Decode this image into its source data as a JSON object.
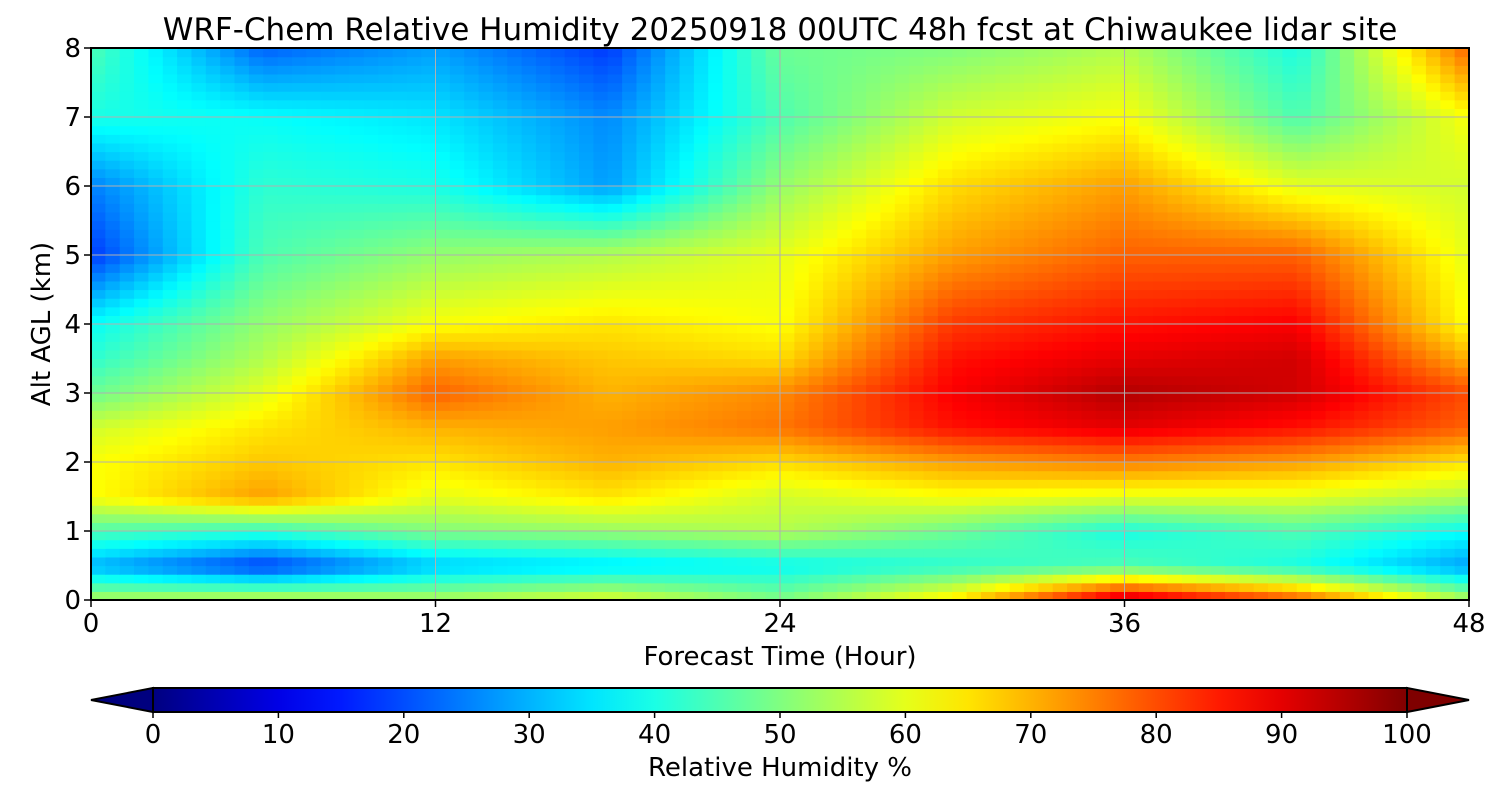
{
  "chart_data": {
    "type": "heatmap",
    "title": "WRF-Chem Relative Humidity 20250918 00UTC 48h fcst at Chiwaukee lidar site",
    "xlabel": "Forecast Time (Hour)",
    "ylabel": "Alt AGL (km)",
    "xlim": [
      0,
      48
    ],
    "ylim": [
      0,
      8
    ],
    "x_ticks": [
      0,
      12,
      24,
      36,
      48
    ],
    "y_ticks": [
      0,
      1,
      2,
      3,
      4,
      5,
      6,
      7,
      8
    ],
    "grid": true,
    "colorbar": {
      "label": "Relative Humidity %",
      "range": [
        0,
        100
      ],
      "ticks": [
        0,
        10,
        20,
        30,
        40,
        50,
        60,
        70,
        80,
        90,
        100
      ],
      "colormap": "jet",
      "extend": "both",
      "placement": "bottom"
    },
    "x_hours": [
      0,
      6,
      12,
      18,
      24,
      30,
      36,
      42,
      48
    ],
    "z_km": [
      0,
      0.5,
      1,
      1.5,
      2,
      2.5,
      3,
      3.5,
      4,
      5,
      6,
      7,
      8
    ],
    "values": [
      [
        55,
        58,
        55,
        60,
        50,
        65,
        95,
        80,
        55
      ],
      [
        30,
        18,
        32,
        35,
        38,
        42,
        45,
        40,
        28
      ],
      [
        45,
        42,
        50,
        52,
        55,
        48,
        40,
        45,
        38
      ],
      [
        62,
        72,
        60,
        65,
        58,
        62,
        60,
        60,
        55
      ],
      [
        62,
        68,
        65,
        70,
        66,
        72,
        75,
        72,
        65
      ],
      [
        58,
        65,
        70,
        72,
        76,
        86,
        90,
        86,
        78
      ],
      [
        48,
        60,
        78,
        70,
        74,
        88,
        95,
        92,
        80
      ],
      [
        42,
        55,
        72,
        68,
        66,
        86,
        90,
        92,
        70
      ],
      [
        38,
        52,
        62,
        65,
        62,
        82,
        86,
        88,
        62
      ],
      [
        18,
        45,
        52,
        55,
        60,
        72,
        78,
        78,
        60
      ],
      [
        25,
        42,
        40,
        28,
        52,
        66,
        72,
        60,
        58
      ],
      [
        40,
        38,
        35,
        26,
        45,
        58,
        62,
        45,
        62
      ],
      [
        45,
        22,
        28,
        18,
        48,
        50,
        55,
        40,
        78
      ]
    ]
  }
}
